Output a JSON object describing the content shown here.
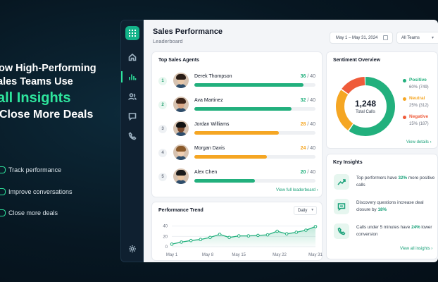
{
  "hero": {
    "lines": [
      "ow High-Performing",
      "ales Teams Use"
    ],
    "accent": "all Insights",
    "last": "Close More Deals",
    "bullets": [
      "Track performance",
      "Improve conversations",
      "Close more deals"
    ]
  },
  "colors": {
    "accent": "#2ee59d",
    "positive": "#22b07d",
    "neutral": "#f5a623",
    "negative": "#ef5b3a",
    "dark_bg": "#071722"
  },
  "sidebar": {
    "items": [
      "home-icon",
      "bar-chart-icon",
      "users-icon",
      "chat-icon",
      "phone-icon",
      "settings-icon"
    ],
    "active": "bar-chart-icon"
  },
  "header": {
    "title": "Sales Performance",
    "subtitle": "Leaderboard",
    "date_range": "May 1 – May 31, 2024",
    "team_select": "All Teams"
  },
  "agents": {
    "title": "Top Sales Agents",
    "rows": [
      {
        "rank": "1",
        "name": "Derek Thompson",
        "score": "36",
        "total": "/ 40",
        "progress": 0.9,
        "color": "#22b07d"
      },
      {
        "rank": "2",
        "name": "Ava Martinez",
        "score": "32",
        "total": "/ 40",
        "progress": 0.8,
        "color": "#22b07d"
      },
      {
        "rank": "3",
        "name": "Jordan Williams",
        "score": "28",
        "total": "/ 40",
        "progress": 0.7,
        "color": "#f5a623"
      },
      {
        "rank": "4",
        "name": "Morgan Davis",
        "score": "24",
        "total": "/ 40",
        "progress": 0.6,
        "color": "#f5a623"
      },
      {
        "rank": "5",
        "name": "Alex Chen",
        "score": "20",
        "total": "/ 40",
        "progress": 0.5,
        "color": "#22b07d"
      }
    ],
    "link": "View full leaderboard"
  },
  "sentiment": {
    "title": "Sentiment Overview",
    "total": "1,248",
    "total_label": "Total Calls",
    "items": [
      {
        "name": "Positive",
        "value": "60% (749)",
        "share": 60,
        "color": "#22b07d"
      },
      {
        "name": "Neutral",
        "value": "25% (312)",
        "share": 25,
        "color": "#f5a623"
      },
      {
        "name": "Negative",
        "value": "15% (187)",
        "share": 15,
        "color": "#ef5b3a"
      }
    ],
    "link": "View details"
  },
  "insights": {
    "title": "Key Insights",
    "items": [
      {
        "icon": "trend-up-icon",
        "pre": "Top performers have ",
        "hl": "32%",
        "post": " more positive calls"
      },
      {
        "icon": "chat-icon",
        "pre": "Discovery questions increase deal closure by ",
        "hl": "18%",
        "post": ""
      },
      {
        "icon": "phone-icon",
        "pre": "Calls under 5 minutes have ",
        "hl": "24%",
        "post": " lower conversion"
      }
    ],
    "link": "View all insights"
  },
  "trend": {
    "title": "Performance Trend",
    "period": "Daily"
  },
  "chart_data": {
    "type": "area",
    "title": "Performance Trend",
    "x": [
      "May 1",
      "May 3",
      "May 5",
      "May 7",
      "May 9",
      "May 11",
      "May 13",
      "May 15",
      "May 17",
      "May 19",
      "May 21",
      "May 23",
      "May 25",
      "May 27",
      "May 29",
      "May 31"
    ],
    "xticks": [
      "May 1",
      "May 8",
      "May 15",
      "May 22",
      "May 31"
    ],
    "yticks": [
      0,
      20,
      40
    ],
    "ylim": [
      0,
      45
    ],
    "series": [
      {
        "values": [
          5,
          9,
          12,
          14,
          18,
          24,
          18,
          21,
          21,
          22,
          23,
          30,
          25,
          28,
          32,
          39
        ]
      }
    ],
    "grid": true
  }
}
